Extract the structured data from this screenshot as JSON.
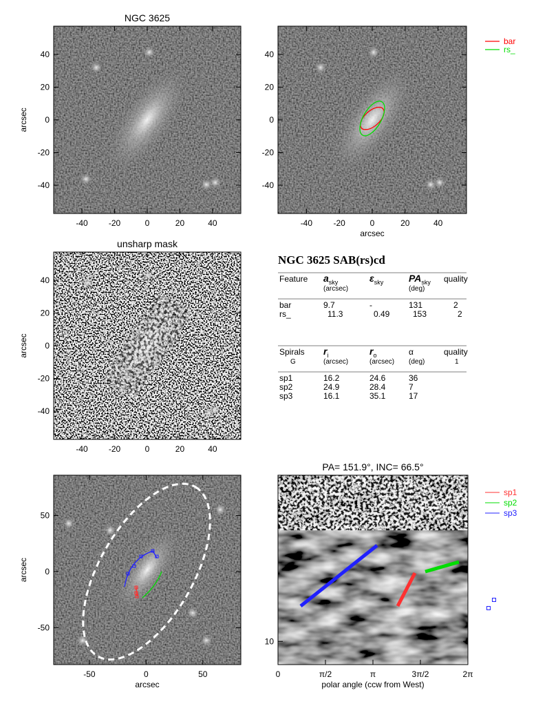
{
  "panels": [
    {
      "title": "NGC 3625",
      "xlim": [
        -57.3,
        57.3
      ],
      "ylim": [
        -57.3,
        57.3
      ],
      "xticks": [
        -40,
        -20,
        0,
        20,
        40
      ],
      "yticks": [
        -40,
        -20,
        0,
        20,
        40
      ],
      "ylabel": "arcsec"
    },
    {
      "xlim": [
        -57.3,
        57.3
      ],
      "ylim": [
        -57.3,
        57.3
      ],
      "xticks": [
        -40,
        -20,
        0,
        20,
        40
      ],
      "yticks": [
        -40,
        -20,
        0,
        20,
        40
      ],
      "xlabel": "arcsec"
    },
    {
      "title": "unsharp mask",
      "xlim": [
        -57.3,
        57.3
      ],
      "ylim": [
        -57.3,
        57.3
      ],
      "xticks": [
        -40,
        -20,
        0,
        20,
        40
      ],
      "yticks": [
        -40,
        -20,
        0,
        20,
        40
      ],
      "ylabel": "arcsec"
    },
    {
      "xlim": [
        -81.5,
        83.5
      ],
      "ylim": [
        -83,
        86
      ],
      "xticks": [
        -50,
        0,
        50
      ],
      "yticks": [
        -50,
        0,
        50
      ],
      "xlabel": "arcsec",
      "ylabel": "arcsec"
    },
    {
      "title": "PA= 151.9°, INC=  66.5°",
      "xlim": [
        0,
        6.2832
      ],
      "ylim": [
        7.9,
        54
      ],
      "log_y": true,
      "xticks": [
        0,
        {
          "value": 1.5708,
          "label": "π/2"
        },
        {
          "value": 3.1416,
          "label": "π"
        },
        {
          "value": 4.7124,
          "label": "3π/2"
        },
        {
          "value": 6.2832,
          "label": "2π"
        }
      ],
      "yticks": [
        10
      ],
      "xlabel": "polar angle (ccw from West)"
    }
  ],
  "legend_features": [
    {
      "name": "bar",
      "color": "#ff0000"
    },
    {
      "name": "rs_",
      "color": "#00dd00"
    }
  ],
  "legend_spirals": [
    {
      "name": "sp1",
      "color": "#ff3030"
    },
    {
      "name": "sp2",
      "color": "#00dd00"
    },
    {
      "name": "sp3",
      "color": "#2020ff"
    }
  ],
  "table": {
    "title": "NGC 3625  SAB(rs)cd",
    "features_header": [
      {
        "symbol": "Feature"
      },
      {
        "symbol": "a",
        "sub": "sky",
        "unit": "(arcsec)"
      },
      {
        "symbol": "ε",
        "sub": "sky"
      },
      {
        "symbol": "PA",
        "sub": "sky",
        "unit": "(deg)"
      },
      {
        "symbol": "quality"
      }
    ],
    "features_rows": [
      [
        "bar",
        "9.7",
        "-",
        "131",
        "2"
      ],
      [
        "rs_",
        "11.3",
        "0.49",
        "153",
        "2"
      ]
    ],
    "spirals_header": [
      {
        "symbol": "Spirals",
        "unit": "G"
      },
      {
        "symbol": "r",
        "sub": "i",
        "unit": "(arcsec)"
      },
      {
        "symbol": "r",
        "sub": "o",
        "unit": "(arcsec)"
      },
      {
        "symbol": "α",
        "unit": "(deg)"
      },
      {
        "symbol": "quality",
        "unit": "1"
      }
    ],
    "spirals_rows": [
      [
        "sp1",
        "16.2",
        "24.6",
        "36"
      ],
      [
        "sp2",
        "24.9",
        "28.4",
        "7"
      ],
      [
        "sp3",
        "16.1",
        "35.1",
        "17"
      ]
    ]
  }
}
